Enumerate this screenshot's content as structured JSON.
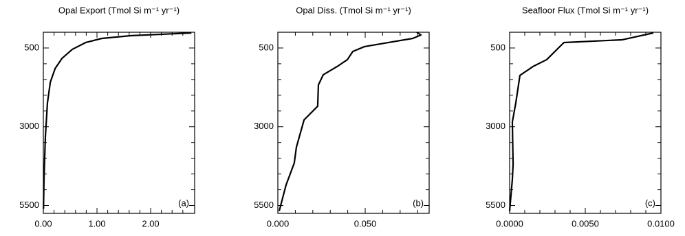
{
  "chart_data": [
    {
      "type": "line",
      "title": "Opal Export (Tmol Si m⁻¹ yr⁻¹)",
      "annotation": "(a)",
      "color": "#000000",
      "x": [
        2.76,
        1.63,
        1.09,
        0.79,
        0.54,
        0.35,
        0.22,
        0.13,
        0.077,
        0.038,
        0.013,
        0.003
      ],
      "series": [
        {
          "values": [
            22,
            109,
            196,
            326,
            543,
            826,
            1152,
            1587,
            2239,
            3326,
            4630,
            5609
          ]
        }
      ],
      "xlim": [
        0,
        2.82
      ],
      "xticks": [
        {
          "value": 0,
          "label": "0.00"
        },
        {
          "value": 1,
          "label": "1.00"
        },
        {
          "value": 2,
          "label": "2.00"
        }
      ],
      "xticks_minor": [
        0.2,
        0.4,
        0.6,
        0.8,
        1.2,
        1.4,
        1.6,
        1.8,
        2.2,
        2.4,
        2.6
      ],
      "ylim": [
        5750,
        0
      ],
      "yticks": [
        500,
        3000,
        5500
      ],
      "yticks_minor": [
        1000,
        1500,
        2000,
        2500,
        3500,
        4000,
        4500,
        5000
      ]
    },
    {
      "type": "line",
      "title": "Opal Diss. (Tmol Si m⁻¹ yr⁻¹)",
      "annotation": "(b)",
      "color": "#000000",
      "x": [
        0.0795,
        0.0819,
        0.0772,
        0.0634,
        0.0496,
        0.0429,
        0.0398,
        0.0346,
        0.026,
        0.0232,
        0.0228,
        0.015,
        0.0106,
        0.0094,
        0.0047,
        0.0008
      ],
      "series": [
        {
          "values": [
            0,
            87,
            196,
            326,
            456,
            609,
            870,
            1065,
            1348,
            1674,
            2348,
            2783,
            3652,
            4152,
            4848,
            5674
          ]
        }
      ],
      "xlim": [
        0,
        0.0866
      ],
      "xticks": [
        {
          "value": 0,
          "label": "0.000"
        },
        {
          "value": 0.05,
          "label": "0.050"
        }
      ],
      "xticks_minor": [
        0.01,
        0.02,
        0.03,
        0.04,
        0.06,
        0.07,
        0.08
      ],
      "ylim": [
        5750,
        0
      ],
      "yticks": [
        500,
        3000,
        5500
      ],
      "yticks_minor": [
        1000,
        1500,
        2000,
        2500,
        3500,
        4000,
        4500,
        5000
      ]
    },
    {
      "type": "line",
      "title": "Seafloor Flux (Tmol Si m⁻¹ yr⁻¹)",
      "annotation": "(c)",
      "color": "#000000",
      "x": [
        0.0095,
        0.00745,
        0.00359,
        0.00245,
        0.00155,
        0.00068,
        0.00041,
        0.00018,
        0.00023,
        0.00018,
        0
      ],
      "series": [
        {
          "values": [
            22,
            239,
            326,
            870,
            1087,
            1370,
            2239,
            2848,
            4196,
            4674,
            5674
          ]
        }
      ],
      "xlim": [
        0,
        0.01
      ],
      "xticks": [
        {
          "value": 0,
          "label": "0.0000"
        },
        {
          "value": 0.005,
          "label": "0.0050"
        },
        {
          "value": 0.01,
          "label": "0.0100"
        }
      ],
      "xticks_minor": [
        0.001,
        0.002,
        0.003,
        0.004,
        0.006,
        0.007,
        0.008,
        0.009
      ],
      "ylim": [
        5750,
        0
      ],
      "yticks": [
        500,
        3000,
        5500
      ],
      "yticks_minor": [
        1000,
        1500,
        2000,
        2500,
        3500,
        4000,
        4500,
        5000
      ]
    }
  ]
}
